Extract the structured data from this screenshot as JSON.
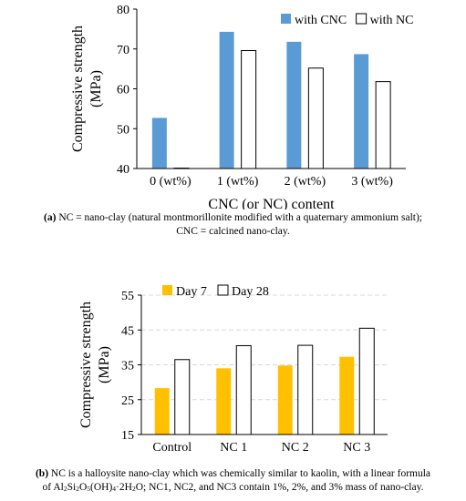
{
  "chart_data": [
    {
      "type": "bar",
      "ylabel_line1": "Compressive strength",
      "ylabel_line2": "(MPa)",
      "xlabel": "CNC (or NC) content",
      "categories": [
        "0 (wt%)",
        "1 (wt%)",
        "2 (wt%)",
        "3 (wt%)"
      ],
      "ylim": [
        40,
        80
      ],
      "yticks": [
        40,
        50,
        60,
        70,
        80
      ],
      "grid": false,
      "legend_position": "top-right",
      "series": [
        {
          "name": "with CNC",
          "color": "#5b9bd5",
          "values": [
            52.7,
            74.3,
            71.8,
            68.7
          ]
        },
        {
          "name": "with NC",
          "color": "#ffffff",
          "values": [
            40.1,
            69.6,
            65.2,
            61.8
          ]
        }
      ]
    },
    {
      "type": "bar",
      "ylabel_line1": "Compressive strength",
      "ylabel_line2": "(MPa)",
      "xlabel": "",
      "categories": [
        "Control",
        "NC 1",
        "NC 2",
        "NC 3"
      ],
      "ylim": [
        15,
        55
      ],
      "yticks": [
        15,
        25,
        35,
        45,
        55
      ],
      "grid": true,
      "legend_position": "top-left",
      "series": [
        {
          "name": "Day 7",
          "color": "#ffc000",
          "values": [
            28.3,
            34.0,
            34.8,
            37.3
          ]
        },
        {
          "name": "Day 28",
          "color": "#ffffff",
          "values": [
            36.5,
            40.5,
            40.6,
            45.5
          ]
        }
      ]
    }
  ],
  "captions": {
    "a_label": "(a)",
    "a_line1": " NC = nano-clay (natural montmorillonite modified with a quaternary ammonium salt);",
    "a_line2": "CNC = calcined nano-clay.",
    "b_label": "(b)",
    "b_line1": " NC is a halloysite nano-clay which was chemically similar to kaolin, with a linear formula",
    "b_formula": "of Al2Si2O5(OH)4·2H2O; NC1, NC2, and NC3 contain 1%, 2%, and 3% mass of nano-clay."
  }
}
